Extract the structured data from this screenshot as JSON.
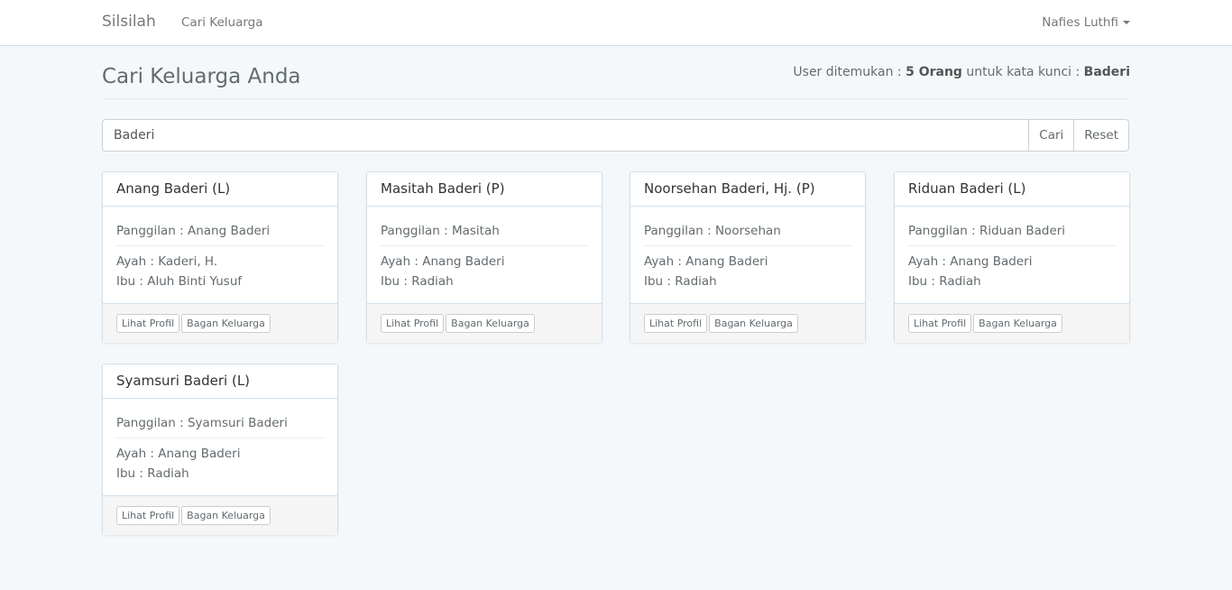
{
  "navbar": {
    "brand": "Silsilah",
    "link": "Cari Keluarga",
    "user": "Nafies Luthfi"
  },
  "page": {
    "title": "Cari Keluarga Anda",
    "summary_prefix": "User ditemukan : ",
    "count": "5 Orang",
    "summary_mid": " untuk kata kunci : ",
    "keyword": "Baderi"
  },
  "search": {
    "value": "Baderi",
    "search_label": "Cari",
    "reset_label": "Reset"
  },
  "labels": {
    "view": "Lihat Profil",
    "tree": "Bagan Keluarga"
  },
  "cards": [
    {
      "name": "Anang Baderi (L)",
      "nick": "Panggilan : Anang Baderi",
      "father": "Ayah : Kaderi, H.",
      "mother": "Ibu : Aluh Binti Yusuf"
    },
    {
      "name": "Masitah Baderi (P)",
      "nick": "Panggilan : Masitah",
      "father": "Ayah : Anang Baderi",
      "mother": "Ibu : Radiah"
    },
    {
      "name": "Noorsehan Baderi, Hj. (P)",
      "nick": "Panggilan : Noorsehan",
      "father": "Ayah : Anang Baderi",
      "mother": "Ibu : Radiah"
    },
    {
      "name": "Riduan Baderi (L)",
      "nick": "Panggilan : Riduan Baderi",
      "father": "Ayah : Anang Baderi",
      "mother": "Ibu : Radiah"
    },
    {
      "name": "Syamsuri Baderi (L)",
      "nick": "Panggilan : Syamsuri Baderi",
      "father": "Ayah : Anang Baderi",
      "mother": "Ibu : Radiah"
    }
  ]
}
